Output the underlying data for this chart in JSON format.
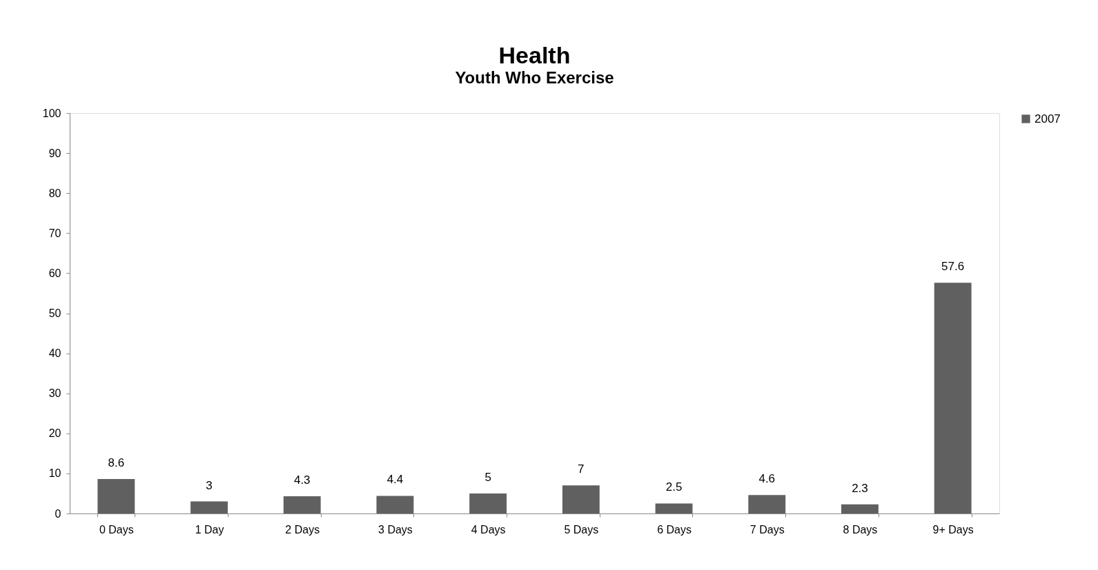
{
  "chart_data": {
    "type": "bar",
    "title": "Health",
    "subtitle": "Youth Who Exercise",
    "categories": [
      "0 Days",
      "1 Day",
      "2 Days",
      "3 Days",
      "4 Days",
      "5 Days",
      "6 Days",
      "7 Days",
      "8 Days",
      "9+ Days"
    ],
    "series": [
      {
        "name": "2007",
        "color": "#606060",
        "values": [
          8.6,
          3,
          4.3,
          4.4,
          5,
          7,
          2.5,
          4.6,
          2.3,
          57.6
        ]
      }
    ],
    "ylim": [
      0,
      100
    ],
    "yticks": [
      0,
      10,
      20,
      30,
      40,
      50,
      60,
      70,
      80,
      90,
      100
    ],
    "data_labels": true,
    "legend": "right",
    "grid": false
  }
}
